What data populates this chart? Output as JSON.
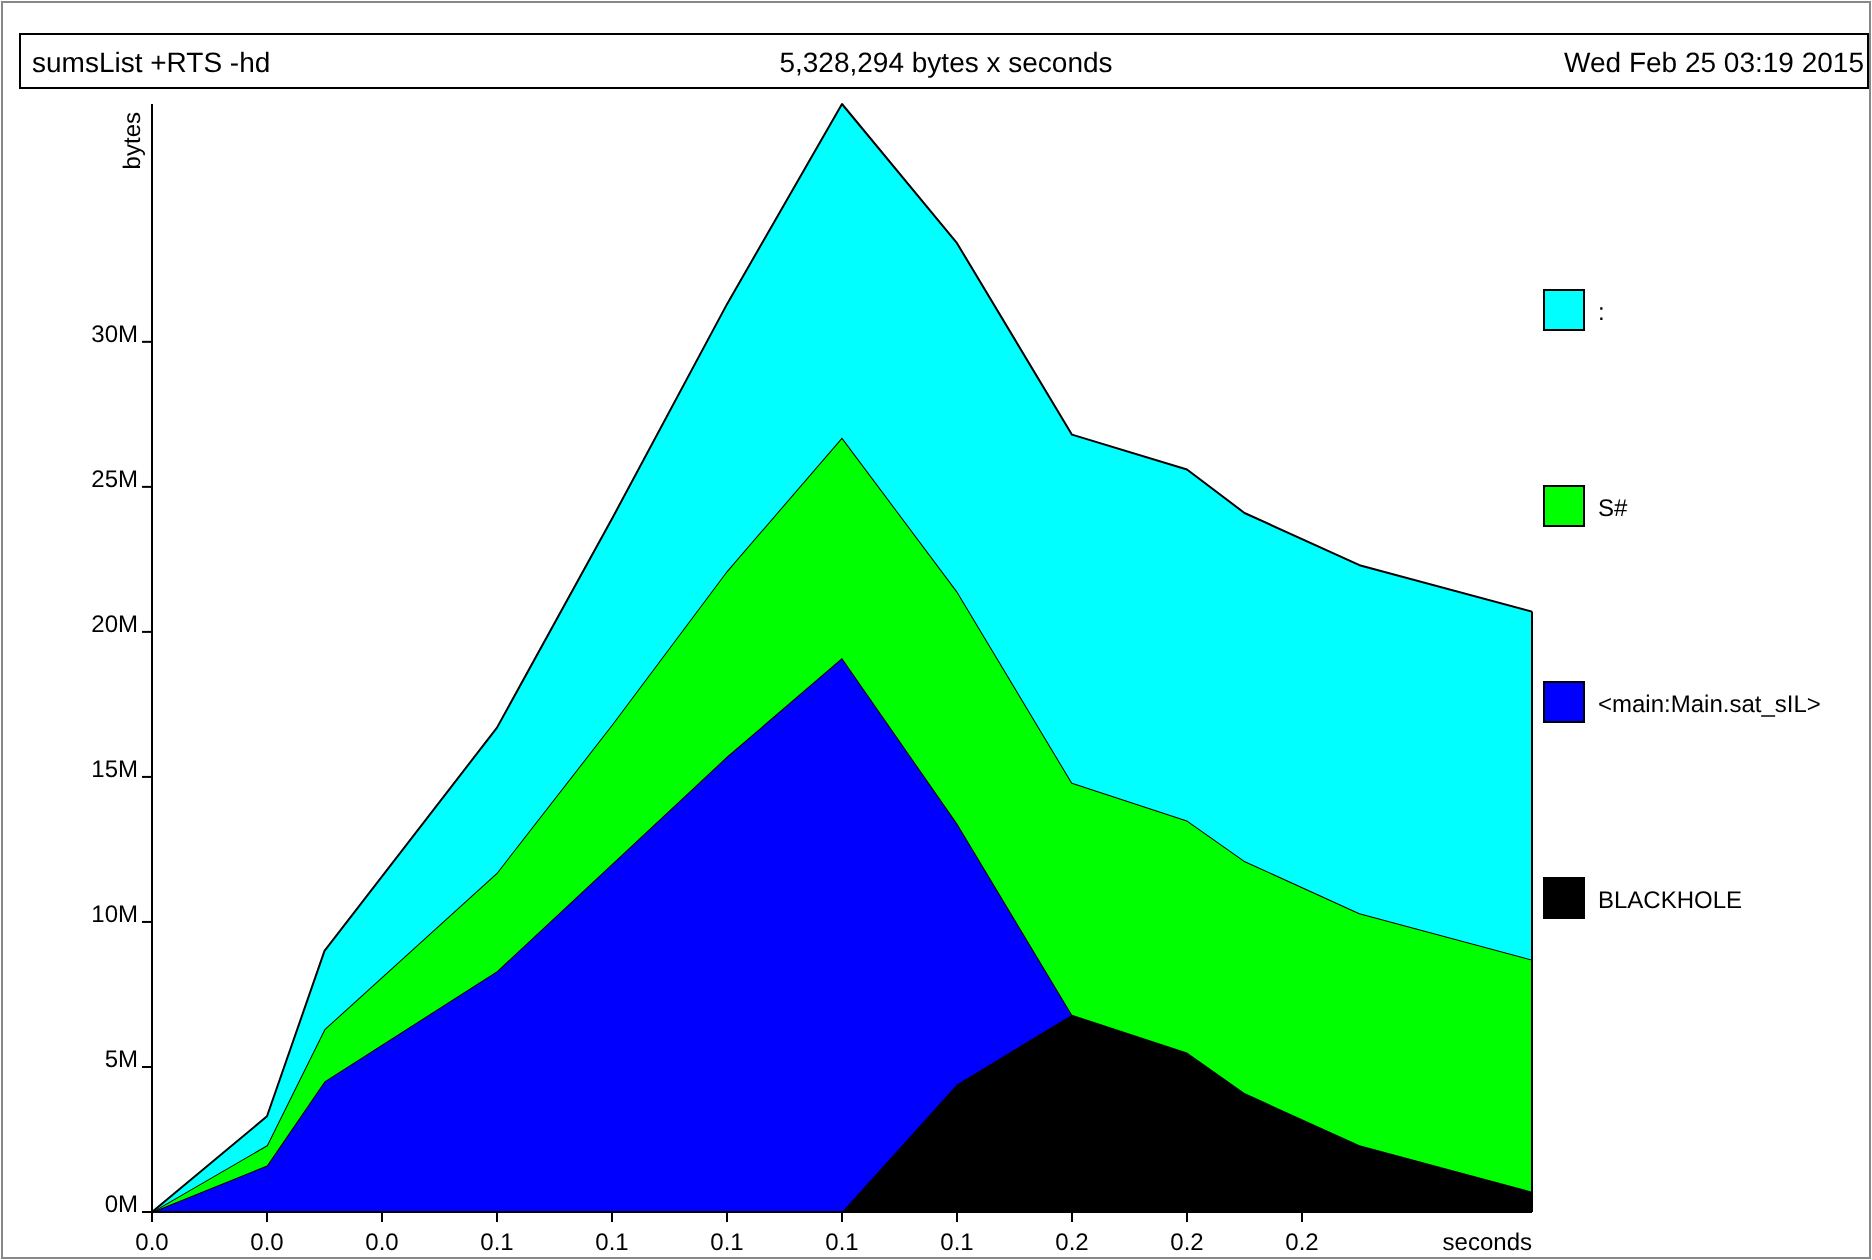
{
  "chart_data": {
    "type": "area",
    "stacked": true,
    "title": "sumsList +RTS -hd",
    "subtitle": "5,328,294 bytes x seconds",
    "annotations": [
      "Wed Feb 25 03:19 2015"
    ],
    "xlabel": "seconds",
    "ylabel": "bytes",
    "x": [
      0,
      0.02,
      0.03,
      0.06,
      0.08,
      0.1,
      0.12,
      0.14,
      0.16,
      0.18,
      0.19,
      0.21,
      0.24
    ],
    "series": [
      {
        "name": "BLACKHOLE",
        "color": "#000000",
        "values": [
          0,
          0,
          0,
          0,
          0,
          0,
          0,
          4.4,
          6.8,
          5.5,
          4.1,
          2.3,
          0.7
        ]
      },
      {
        "name": "<main:Main.sat_sIL>",
        "color": "#0000ff",
        "values": [
          0,
          1.6,
          4.5,
          8.3,
          12.0,
          15.7,
          19.1,
          9.0,
          0,
          0,
          0,
          0,
          0
        ]
      },
      {
        "name": "S#",
        "color": "#00ff00",
        "values": [
          0,
          0.7,
          1.8,
          3.4,
          4.8,
          6.4,
          7.6,
          8.0,
          8.0,
          8.0,
          8.0,
          8.0,
          8.0
        ]
      },
      {
        "name": ":",
        "color": "#00ffff",
        "values": [
          0,
          1.0,
          2.7,
          5.0,
          7.1,
          9.2,
          11.5,
          12.0,
          12.0,
          12.1,
          12.0,
          12.0,
          12.0
        ]
      }
    ],
    "xlim": [
      0,
      0.24
    ],
    "xticks": [
      {
        "value": 0,
        "label": "0.0"
      },
      {
        "value": 0.02,
        "label": "0.0"
      },
      {
        "value": 0.04,
        "label": "0.0"
      },
      {
        "value": 0.06,
        "label": "0.1"
      },
      {
        "value": 0.08,
        "label": "0.1"
      },
      {
        "value": 0.1,
        "label": "0.1"
      },
      {
        "value": 0.12,
        "label": "0.1"
      },
      {
        "value": 0.14,
        "label": "0.1"
      },
      {
        "value": 0.16,
        "label": "0.2"
      },
      {
        "value": 0.18,
        "label": "0.2"
      },
      {
        "value": 0.2,
        "label": "0.2"
      }
    ],
    "ylim": [
      0,
      38.2
    ],
    "yticks": [
      {
        "value": 0,
        "label": "0M"
      },
      {
        "value": 5,
        "label": "5M"
      },
      {
        "value": 10,
        "label": "10M"
      },
      {
        "value": 15,
        "label": "15M"
      },
      {
        "value": 20,
        "label": "20M"
      },
      {
        "value": 25,
        "label": "25M"
      },
      {
        "value": 30,
        "label": "30M"
      }
    ],
    "legend": "right",
    "grid": false
  }
}
